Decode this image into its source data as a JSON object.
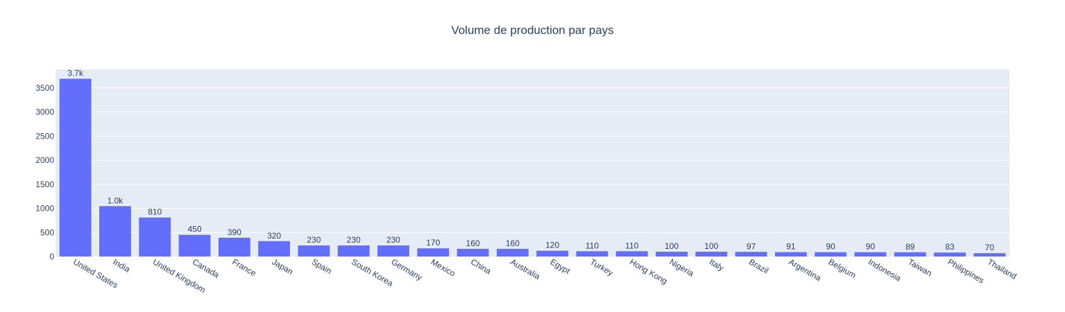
{
  "chart_data": {
    "type": "bar",
    "title": "Volume de production par pays",
    "xlabel": "",
    "ylabel": "",
    "categories": [
      "United States",
      "India",
      "United Kingdom",
      "Canada",
      "France",
      "Japan",
      "Spain",
      "South Korea",
      "Germany",
      "Mexico",
      "China",
      "Australia",
      "Egypt",
      "Turkey",
      "Hong Kong",
      "Nigeria",
      "Italy",
      "Brazil",
      "Argentina",
      "Belgium",
      "Indonesia",
      "Taiwan",
      "Philippines",
      "Thailand"
    ],
    "values": [
      3690,
      1046,
      810,
      450,
      390,
      320,
      230,
      230,
      230,
      170,
      160,
      160,
      120,
      110,
      110,
      100,
      100,
      97,
      91,
      90,
      90,
      89,
      83,
      70
    ],
    "value_labels": [
      "3.7k",
      "1.0k",
      "810",
      "450",
      "390",
      "320",
      "230",
      "230",
      "230",
      "170",
      "160",
      "160",
      "120",
      "110",
      "110",
      "100",
      "100",
      "97",
      "91",
      "90",
      "90",
      "89",
      "83",
      "70"
    ],
    "ylim": [
      0,
      3885
    ],
    "yticks": [
      0,
      500,
      1000,
      1500,
      2000,
      2500,
      3000,
      3500
    ],
    "grid": true,
    "legend": "none",
    "colors": {
      "bar": "#636efa",
      "plot_bg": "#e5ecf6",
      "grid": "#ffffff",
      "text": "#2a3f5f"
    }
  }
}
